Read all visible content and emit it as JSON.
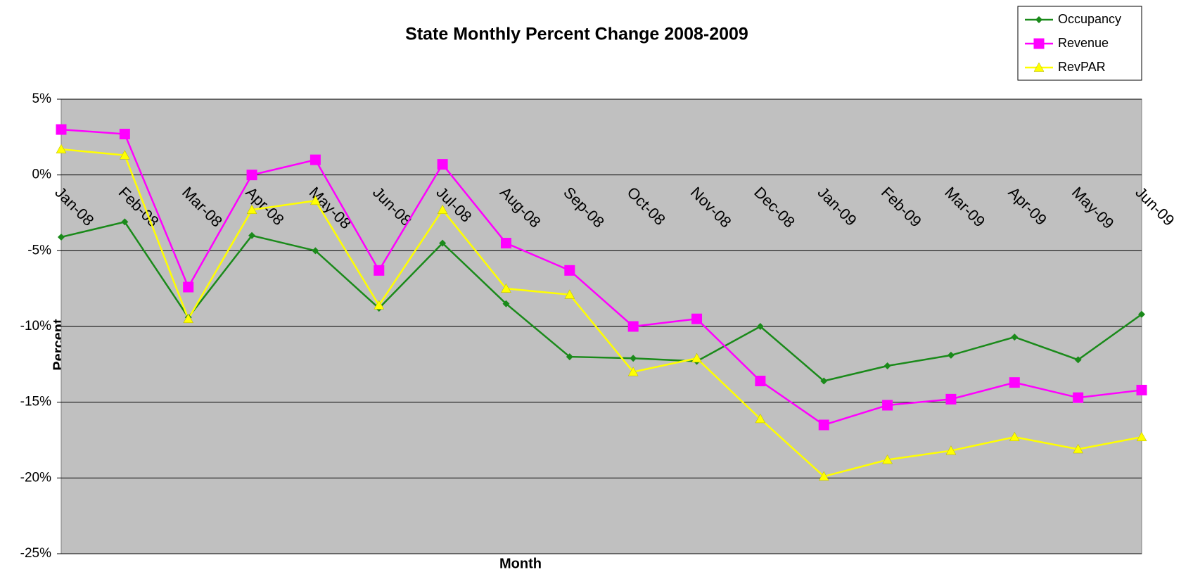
{
  "chart_data": {
    "type": "line",
    "title": "State Monthly Percent Change 2008-2009",
    "xlabel": "Month",
    "ylabel": "Percent",
    "categories": [
      "Jan-08",
      "Feb-08",
      "Mar-08",
      "Apr-08",
      "May-08",
      "Jun-08",
      "Jul-08",
      "Aug-08",
      "Sep-08",
      "Oct-08",
      "Nov-08",
      "Dec-08",
      "Jan-09",
      "Feb-09",
      "Mar-09",
      "Apr-09",
      "May-09",
      "Jun-09"
    ],
    "series": [
      {
        "name": "Occupancy",
        "color": "#1a8a1a",
        "marker": "diamond",
        "values": [
          -4.1,
          -3.1,
          -9.4,
          -4.0,
          -5.0,
          -8.8,
          -4.5,
          -8.5,
          -12.0,
          -12.1,
          -12.3,
          -10.0,
          -13.6,
          -12.6,
          -11.9,
          -10.7,
          -12.2,
          -9.2
        ]
      },
      {
        "name": "Revenue",
        "color": "#ff00ff",
        "marker": "square",
        "values": [
          3.0,
          2.7,
          -7.4,
          0.0,
          1.0,
          -6.3,
          0.7,
          -4.5,
          -6.3,
          -10.0,
          -9.5,
          -13.6,
          -16.5,
          -15.2,
          -14.8,
          -13.7,
          -14.7,
          -14.2
        ]
      },
      {
        "name": "RevPAR",
        "color": "#ffff00",
        "marker": "triangle",
        "values": [
          1.7,
          1.3,
          -9.5,
          -2.3,
          -1.7,
          -8.6,
          -2.3,
          -7.5,
          -7.9,
          -13.0,
          -12.1,
          -16.1,
          -19.9,
          -18.8,
          -18.2,
          -17.3,
          -18.1,
          -17.3
        ]
      }
    ],
    "ylim": [
      -25,
      5
    ],
    "yticks": [
      {
        "value": -25,
        "label": "-25%"
      },
      {
        "value": -20,
        "label": "-20%"
      },
      {
        "value": -15,
        "label": "-15%"
      },
      {
        "value": -10,
        "label": "-10%"
      },
      {
        "value": -5,
        "label": "-5%"
      },
      {
        "value": 0,
        "label": "0%"
      },
      {
        "value": 5,
        "label": "5%"
      }
    ],
    "grid": true,
    "legend": "top-right",
    "plot_background": "#c0c0c0"
  }
}
